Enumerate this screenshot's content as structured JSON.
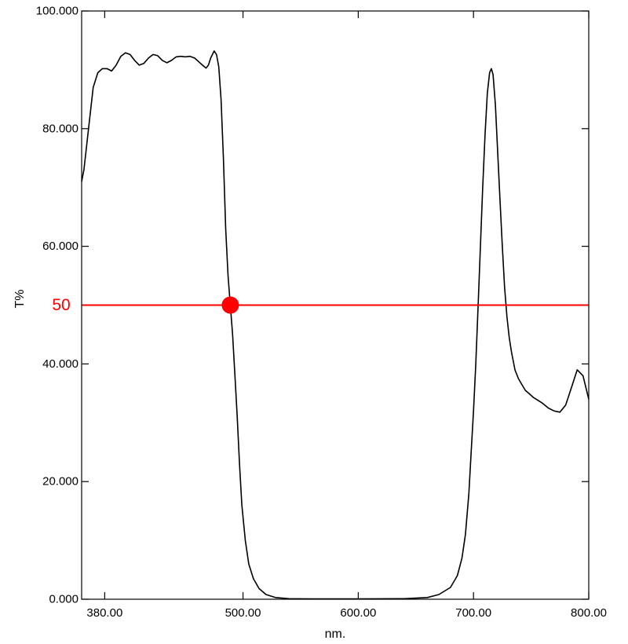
{
  "chart_data": {
    "type": "line",
    "title": "",
    "xlabel": "nm.",
    "ylabel": "T%",
    "xlim": [
      360,
      800
    ],
    "ylim": [
      0,
      100
    ],
    "x_ticks": [
      {
        "value": 380,
        "label": "380.00"
      },
      {
        "value": 500,
        "label": "500.00"
      },
      {
        "value": 600,
        "label": "600.00"
      },
      {
        "value": 700,
        "label": "700.00"
      },
      {
        "value": 800,
        "label": "800.00"
      }
    ],
    "y_ticks": [
      {
        "value": 0,
        "label": "0.000"
      },
      {
        "value": 20,
        "label": "20.000"
      },
      {
        "value": 40,
        "label": "40.000"
      },
      {
        "value": 60,
        "label": "60.000"
      },
      {
        "value": 80,
        "label": "80.000"
      },
      {
        "value": 100,
        "label": "100.000"
      }
    ],
    "grid": false,
    "series": [
      {
        "color": "#000000",
        "points": [
          [
            360,
            71
          ],
          [
            362,
            73
          ],
          [
            366,
            80
          ],
          [
            370,
            87
          ],
          [
            374,
            89.5
          ],
          [
            378,
            90.2
          ],
          [
            382,
            90.2
          ],
          [
            386,
            89.8
          ],
          [
            390,
            90.8
          ],
          [
            394,
            92.3
          ],
          [
            398,
            92.9
          ],
          [
            402,
            92.6
          ],
          [
            406,
            91.6
          ],
          [
            410,
            90.8
          ],
          [
            414,
            91.1
          ],
          [
            418,
            92
          ],
          [
            422,
            92.6
          ],
          [
            426,
            92.4
          ],
          [
            430,
            91.6
          ],
          [
            434,
            91.2
          ],
          [
            438,
            91.6
          ],
          [
            442,
            92.2
          ],
          [
            446,
            92.3
          ],
          [
            450,
            92.2
          ],
          [
            454,
            92.3
          ],
          [
            458,
            92
          ],
          [
            462,
            91.3
          ],
          [
            466,
            90.6
          ],
          [
            468,
            90.3
          ],
          [
            470,
            90.8
          ],
          [
            472,
            92
          ],
          [
            475,
            93.2
          ],
          [
            477,
            92.6
          ],
          [
            479,
            90.5
          ],
          [
            481,
            85
          ],
          [
            483,
            75
          ],
          [
            485,
            63
          ],
          [
            487,
            55
          ],
          [
            489,
            50
          ],
          [
            491,
            45
          ],
          [
            493,
            38
          ],
          [
            495,
            31
          ],
          [
            497,
            23
          ],
          [
            499,
            16
          ],
          [
            502,
            10
          ],
          [
            505,
            6
          ],
          [
            509,
            3.5
          ],
          [
            514,
            1.8
          ],
          [
            520,
            0.8
          ],
          [
            528,
            0.3
          ],
          [
            540,
            0.1
          ],
          [
            560,
            0.05
          ],
          [
            600,
            0.05
          ],
          [
            640,
            0.1
          ],
          [
            660,
            0.3
          ],
          [
            670,
            0.8
          ],
          [
            680,
            2
          ],
          [
            686,
            4
          ],
          [
            690,
            7
          ],
          [
            693,
            11
          ],
          [
            696,
            18
          ],
          [
            698,
            25
          ],
          [
            700,
            32
          ],
          [
            702,
            40
          ],
          [
            704,
            50
          ],
          [
            706,
            60
          ],
          [
            708,
            70
          ],
          [
            710,
            79
          ],
          [
            712,
            86
          ],
          [
            714,
            89.5
          ],
          [
            715.5,
            90.2
          ],
          [
            717,
            89.2
          ],
          [
            719,
            84
          ],
          [
            721,
            76
          ],
          [
            723,
            68
          ],
          [
            725,
            60
          ],
          [
            727,
            53
          ],
          [
            729,
            48
          ],
          [
            731,
            44.5
          ],
          [
            733,
            42
          ],
          [
            736,
            39
          ],
          [
            739,
            37.5
          ],
          [
            742,
            36.5
          ],
          [
            745,
            35.5
          ],
          [
            748,
            35
          ],
          [
            752,
            34.3
          ],
          [
            756,
            33.8
          ],
          [
            760,
            33.3
          ],
          [
            765,
            32.5
          ],
          [
            770,
            32
          ],
          [
            775,
            31.8
          ],
          [
            780,
            33
          ],
          [
            785,
            36
          ],
          [
            790,
            39
          ],
          [
            795,
            38
          ],
          [
            800,
            34
          ]
        ]
      }
    ],
    "reference_line": {
      "y": 50,
      "label": "50",
      "color": "#ff0000"
    },
    "marker": {
      "x": 489,
      "y": 50,
      "color": "#ff0000"
    }
  }
}
